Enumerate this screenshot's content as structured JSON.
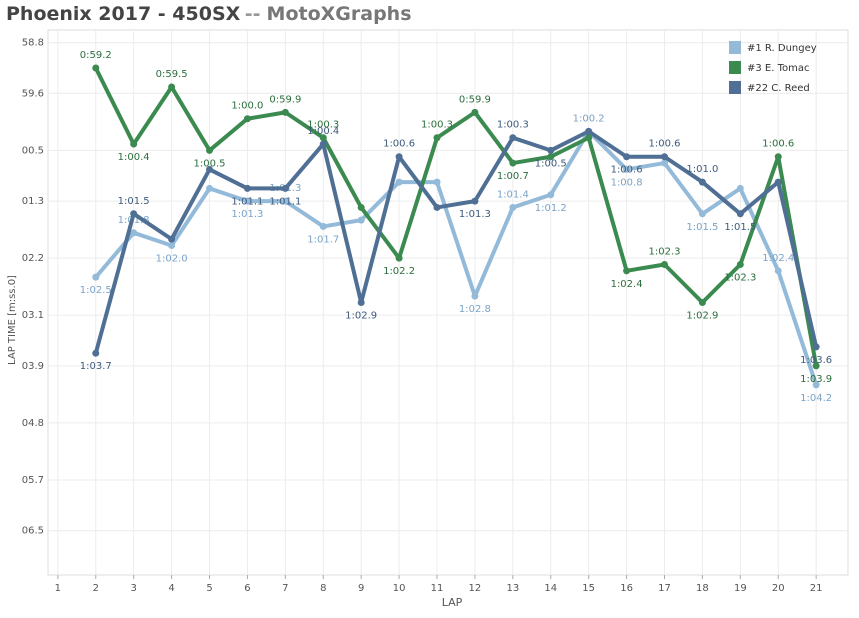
{
  "chart_data": {
    "type": "line",
    "title": "Phoenix 2017 - 450SX",
    "title_separator": "--",
    "brand": "MotoXGraphs",
    "xlabel": "LAP",
    "ylabel": "LAP TIME [m:ss.0]",
    "x": [
      2,
      3,
      4,
      5,
      6,
      7,
      8,
      9,
      10,
      11,
      12,
      13,
      14,
      15,
      16,
      17,
      18,
      19,
      20,
      21
    ],
    "xlim": [
      0.74,
      21.84
    ],
    "xticks": [
      1,
      2,
      3,
      4,
      5,
      6,
      7,
      8,
      9,
      10,
      11,
      12,
      13,
      14,
      15,
      16,
      17,
      18,
      19,
      20,
      21
    ],
    "ylim": [
      67.2,
      58.6
    ],
    "yticks": [
      58.8,
      59.6,
      {
        "value": 60.5,
        "label": "00.5"
      },
      {
        "value": 61.3,
        "label": "01.3"
      },
      {
        "value": 62.2,
        "label": "02.2"
      },
      {
        "value": 63.1,
        "label": "03.1"
      },
      {
        "value": 63.9,
        "label": "03.9"
      },
      {
        "value": 64.8,
        "label": "04.8"
      },
      {
        "value": 65.7,
        "label": "05.7"
      },
      {
        "value": 66.5,
        "label": "06.5"
      }
    ],
    "grid": true,
    "legend": "top-right",
    "series": [
      {
        "name": "#1 R. Dungey",
        "color": "#94bad9",
        "label_color": "#7aa3c8",
        "values": [
          62.5,
          61.8,
          62.0,
          61.1,
          61.3,
          61.3,
          61.7,
          61.6,
          61.0,
          61.0,
          62.8,
          61.4,
          61.2,
          60.2,
          60.8,
          60.7,
          61.5,
          61.1,
          62.4,
          64.2
        ],
        "value_labels": [
          "1:02.5",
          "1:01.8",
          "1:02.0",
          null,
          "1:01.3",
          "1:01.3",
          "1:01.7",
          null,
          null,
          null,
          "1:02.8",
          "1:01.4",
          "1:01.2",
          "1:00.2",
          "1:00.8",
          null,
          "1:01.5",
          null,
          "1:02.4",
          "1:04.2"
        ]
      },
      {
        "name": "#3 E. Tomac",
        "color": "#3b8a50",
        "label_color": "#2b6e3c",
        "values": [
          59.2,
          60.4,
          59.5,
          60.5,
          60.0,
          59.9,
          60.3,
          61.4,
          62.2,
          60.3,
          59.9,
          60.7,
          60.6,
          60.3,
          62.4,
          62.3,
          62.9,
          62.3,
          60.6,
          63.9
        ],
        "value_labels": [
          "0:59.2",
          "1:00.4",
          "0:59.5",
          "1:00.5",
          "1:00.0",
          "0:59.9",
          "1:00.3",
          null,
          "1:02.2",
          "1:00.3",
          "0:59.9",
          "1:00.7",
          null,
          null,
          "1:02.4",
          "1:02.3",
          "1:02.9",
          "1:02.3",
          "1:00.6",
          "1:03.9"
        ]
      },
      {
        "name": "#22 C. Reed",
        "color": "#4f6f94",
        "label_color": "#3d5a7d",
        "values": [
          63.7,
          61.5,
          61.9,
          60.8,
          61.1,
          61.1,
          60.4,
          62.9,
          60.6,
          61.4,
          61.3,
          60.3,
          60.5,
          60.2,
          60.6,
          60.6,
          61.0,
          61.5,
          61.0,
          63.6
        ],
        "value_labels": [
          "1:03.7",
          "1:01.5",
          null,
          null,
          "1:01.1",
          "1:01.1",
          "1:00.4",
          "1:02.9",
          "1:00.6",
          null,
          "1:01.3",
          "1:00.3",
          "1:00.5",
          null,
          "1:00.6",
          "1:00.6",
          "1:01.0",
          "1:01.5",
          null,
          "1:03.6"
        ]
      }
    ]
  }
}
